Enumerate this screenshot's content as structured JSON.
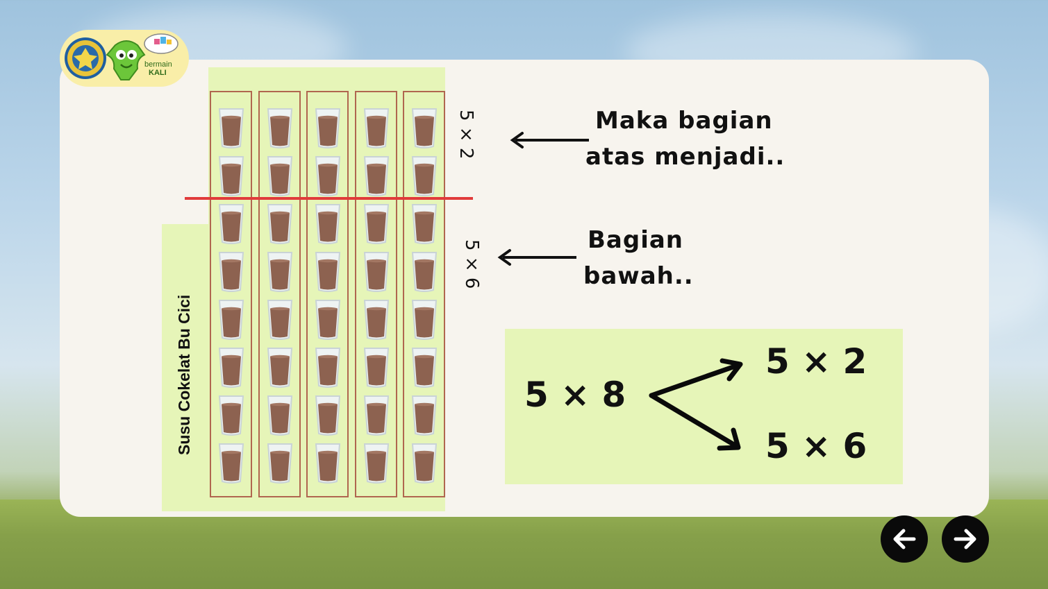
{
  "logo": {
    "brand_line1": "bermain",
    "brand_line2": "KALI"
  },
  "grid": {
    "columns": 5,
    "rows": 8,
    "split_after_row": 2
  },
  "label_left": "Susu Cokelat Bu Cici",
  "top_side_label": "5 × 2",
  "bottom_side_label": "5 × 6",
  "note_top": {
    "line1": "Maka bagian",
    "line2": "atas menjadi.."
  },
  "note_bottom": {
    "line1": "Bagian",
    "line2": "bawah.."
  },
  "decomposition": {
    "whole": "5 × 8",
    "part_top": "5 × 2",
    "part_bottom": "5 × 6"
  },
  "colors": {
    "panel": "#e6f5b8",
    "column_border": "#b0664f",
    "divider": "#e13b3b",
    "milk": "#8d6250"
  },
  "nav": {
    "prev_icon": "arrow-left-icon",
    "next_icon": "arrow-right-icon"
  }
}
